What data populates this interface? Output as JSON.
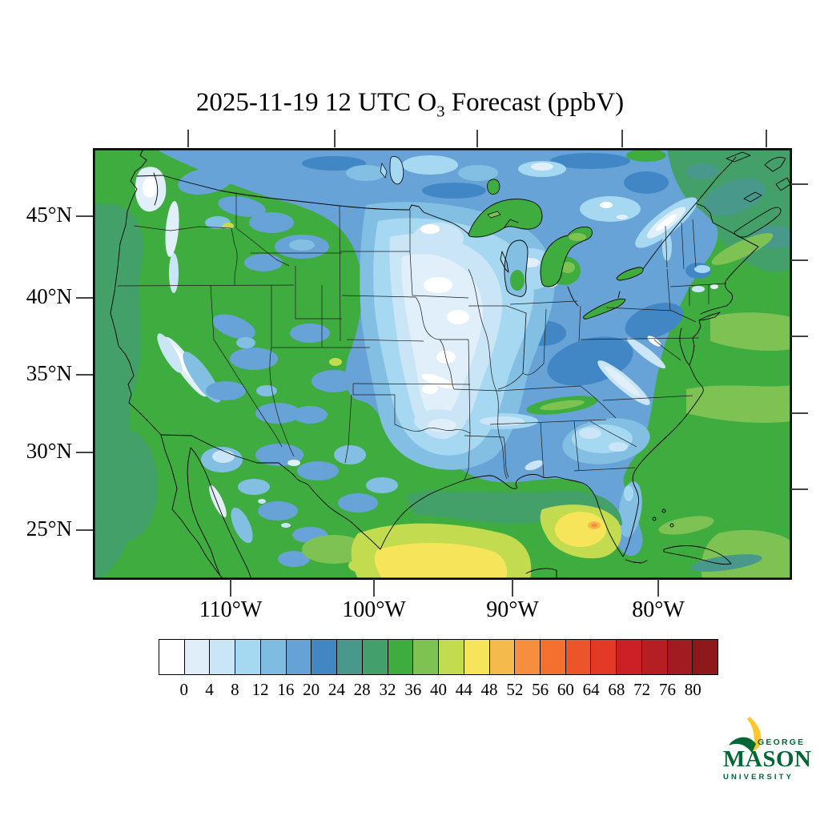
{
  "title": {
    "prefix": "2025-11-19 12 UTC O",
    "subscript": "3",
    "suffix": " Forecast (ppbV)"
  },
  "map": {
    "lat_labels": [
      "45°N",
      "40°N",
      "35°N",
      "30°N",
      "25°N"
    ],
    "lon_labels": [
      "110°W",
      "100°W",
      "90°W",
      "80°W"
    ]
  },
  "colorbar": {
    "tick_labels": [
      "0",
      "4",
      "8",
      "12",
      "16",
      "20",
      "24",
      "28",
      "32",
      "36",
      "40",
      "44",
      "48",
      "52",
      "56",
      "60",
      "64",
      "68",
      "72",
      "76",
      "80"
    ],
    "colors": [
      "#FFFFFF",
      "#DFEEF9",
      "#C9E6F6",
      "#A5D8F1",
      "#7FBCE1",
      "#66A2D5",
      "#4286C4",
      "#48998C",
      "#43A06A",
      "#3FAC3F",
      "#7EC254",
      "#C3DB4F",
      "#F6E45A",
      "#F4BA4C",
      "#F68F3D",
      "#F3702F",
      "#EC5529",
      "#E23A27",
      "#CB2026",
      "#B51F24",
      "#A01C20",
      "#8E191B"
    ]
  },
  "logo": {
    "top": "GEORGE",
    "middle": "MASON",
    "bottom": "UNIVERSITY",
    "green": "#006633",
    "gold": "#FFC72C"
  }
}
